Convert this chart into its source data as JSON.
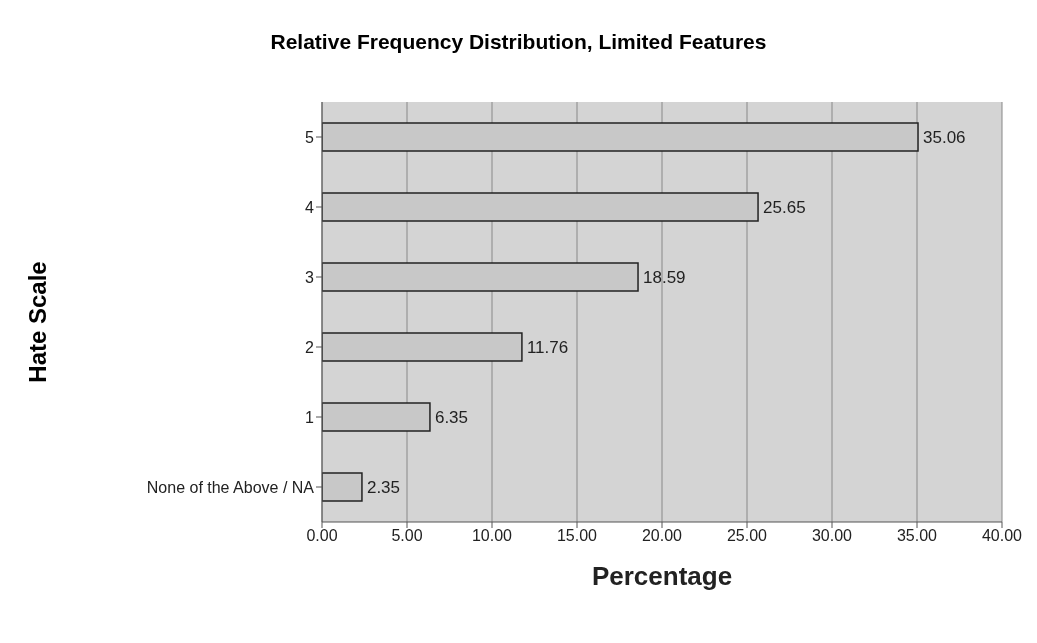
{
  "chart_data": {
    "type": "bar",
    "orientation": "horizontal",
    "title": "Relative Frequency Distribution, Limited Features",
    "xlabel": "Percentage",
    "ylabel": "Hate Scale",
    "categories": [
      "5",
      "4",
      "3",
      "2",
      "1",
      "None of the Above / NA"
    ],
    "values": [
      35.06,
      25.65,
      18.59,
      11.76,
      6.35,
      2.35
    ],
    "color": "#c8c8c8",
    "xlim": [
      0,
      40
    ],
    "xticks": [
      {
        "value": 0,
        "label": "0.00"
      },
      {
        "value": 5,
        "label": "5.00"
      },
      {
        "value": 10,
        "label": "10.00"
      },
      {
        "value": 15,
        "label": "15.00"
      },
      {
        "value": 20,
        "label": "20.00"
      },
      {
        "value": 25,
        "label": "25.00"
      },
      {
        "value": 30,
        "label": "30.00"
      },
      {
        "value": 35,
        "label": "35.00"
      },
      {
        "value": 40,
        "label": "40.00"
      }
    ],
    "grid": "x",
    "data_labels": true
  }
}
